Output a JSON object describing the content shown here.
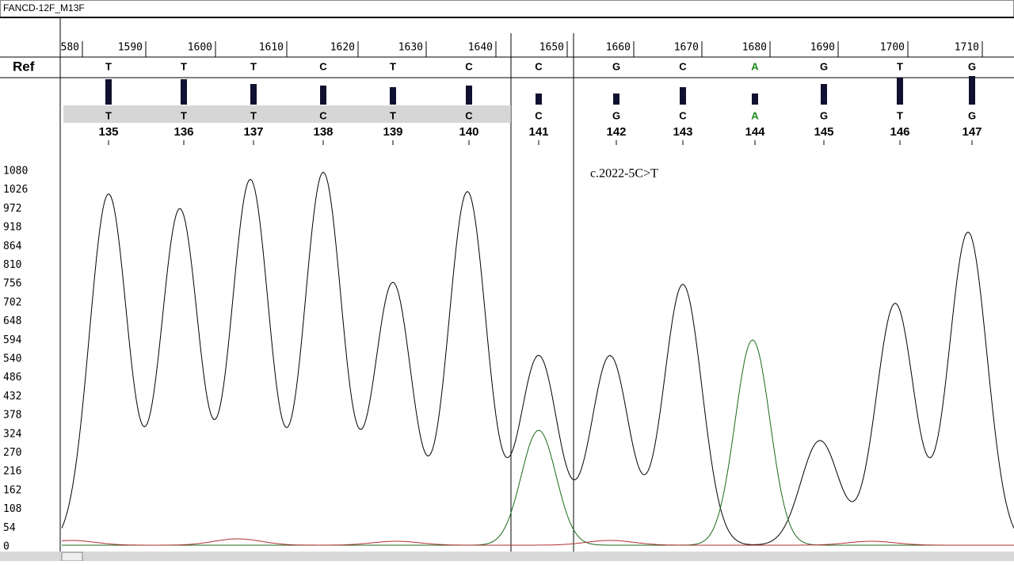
{
  "window": {
    "title": "FANCD-12F_M13F"
  },
  "scale": {
    "labels": [
      "580",
      "1590",
      "1600",
      "1610",
      "1620",
      "1630",
      "1640",
      "1650",
      "1660",
      "1670",
      "1680",
      "1690",
      "1700",
      "1710"
    ]
  },
  "reference": {
    "label": "Ref",
    "bases": [
      "T",
      "T",
      "T",
      "C",
      "T",
      "C",
      "C",
      "G",
      "C",
      "A",
      "G",
      "T",
      "G"
    ]
  },
  "calls": {
    "bases": [
      "T",
      "T",
      "T",
      "C",
      "T",
      "C",
      "C",
      "G",
      "C",
      "A",
      "G",
      "T",
      "G"
    ],
    "positions": [
      "135",
      "136",
      "137",
      "138",
      "139",
      "140",
      "141",
      "142",
      "143",
      "144",
      "145",
      "146",
      "147"
    ]
  },
  "y_axis": {
    "labels": [
      "1080",
      "1026",
      "972",
      "918",
      "864",
      "810",
      "756",
      "702",
      "648",
      "594",
      "540",
      "486",
      "432",
      "378",
      "324",
      "270",
      "216",
      "162",
      "108",
      "54",
      "0"
    ]
  },
  "annotation": "c.2022-5C>T"
}
